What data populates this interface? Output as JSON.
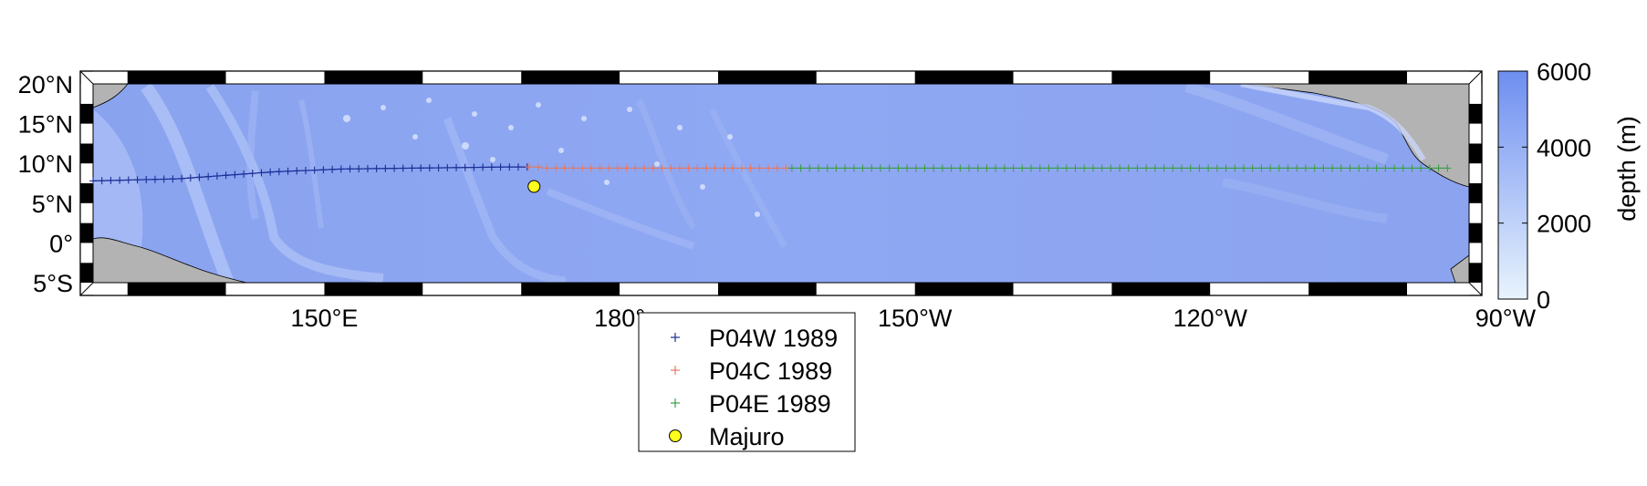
{
  "map": {
    "lon_range": [
      126.5,
      266.3
    ],
    "lat_range": [
      -5,
      20
    ],
    "lat_labels": [
      {
        "lat": 20,
        "label": "20°N"
      },
      {
        "lat": 15,
        "label": "15°N"
      },
      {
        "lat": 10,
        "label": "10°N"
      },
      {
        "lat": 5,
        "label": "5°N"
      },
      {
        "lat": 0,
        "label": "0°"
      },
      {
        "lat": -5,
        "label": "5°S"
      }
    ],
    "lon_labels": [
      {
        "lon": 150,
        "label": "150°E"
      },
      {
        "lon": 180,
        "label": "180°"
      },
      {
        "lon": 210,
        "label": "150°W"
      },
      {
        "lon": 240,
        "label": "120°W"
      },
      {
        "lon": 270,
        "label": "90°W"
      }
    ],
    "ocean_color": "#8ea6f2",
    "land_color": "#b3b3b3"
  },
  "colorbar": {
    "label": "depth (m)",
    "min": 0,
    "max": 6000,
    "ticks": [
      "0",
      "2000",
      "4000",
      "6000"
    ],
    "color_low": "#e8f4fd",
    "color_high": "#6e8ef0"
  },
  "tracks": [
    {
      "name": "P04W 1989",
      "color": "#1c2f96",
      "lon_start": 126.5,
      "lon_end": 170.8
    },
    {
      "name": "P04C 1989",
      "color": "#e27a66",
      "lon_start": 170.8,
      "lon_end": 197.5
    },
    {
      "name": "P04E 1989",
      "color": "#3c9e4a",
      "lon_start": 197.5,
      "lon_end": 264.2
    }
  ],
  "stations": [
    {
      "name": "Majuro",
      "lon": 171.3,
      "lat": 7.1,
      "color": "#ffff1e"
    }
  ]
}
